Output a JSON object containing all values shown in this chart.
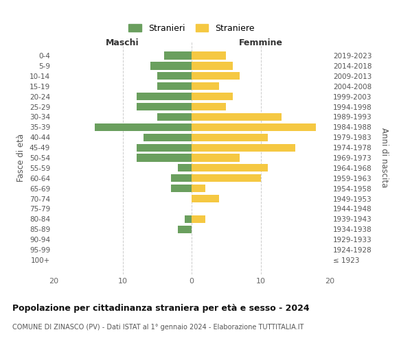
{
  "age_groups": [
    "0-4",
    "5-9",
    "10-14",
    "15-19",
    "20-24",
    "25-29",
    "30-34",
    "35-39",
    "40-44",
    "45-49",
    "50-54",
    "55-59",
    "60-64",
    "65-69",
    "70-74",
    "75-79",
    "80-84",
    "85-89",
    "90-94",
    "95-99",
    "100+"
  ],
  "birth_years": [
    "2019-2023",
    "2014-2018",
    "2009-2013",
    "2004-2008",
    "1999-2003",
    "1994-1998",
    "1989-1993",
    "1984-1988",
    "1979-1983",
    "1974-1978",
    "1969-1973",
    "1964-1968",
    "1959-1963",
    "1954-1958",
    "1949-1953",
    "1944-1948",
    "1939-1943",
    "1934-1938",
    "1929-1933",
    "1924-1928",
    "≤ 1923"
  ],
  "maschi": [
    4,
    6,
    5,
    5,
    8,
    8,
    5,
    14,
    7,
    8,
    8,
    2,
    3,
    3,
    0,
    0,
    1,
    2,
    0,
    0,
    0
  ],
  "femmine": [
    5,
    6,
    7,
    4,
    6,
    5,
    13,
    18,
    11,
    15,
    7,
    11,
    10,
    2,
    4,
    0,
    2,
    0,
    0,
    0,
    0
  ],
  "male_color": "#6a9f5e",
  "female_color": "#f5c842",
  "xlabel_left": "Maschi",
  "xlabel_right": "Femmine",
  "ylabel_left": "Fasce di età",
  "ylabel_right": "Anni di nascita",
  "xlim": 20,
  "title": "Popolazione per cittadinanza straniera per età e sesso - 2024",
  "subtitle": "COMUNE DI ZINASCO (PV) - Dati ISTAT al 1° gennaio 2024 - Elaborazione TUTTITALIA.IT",
  "legend_stranieri": "Stranieri",
  "legend_straniere": "Straniere",
  "background_color": "#ffffff",
  "grid_color": "#cccccc"
}
